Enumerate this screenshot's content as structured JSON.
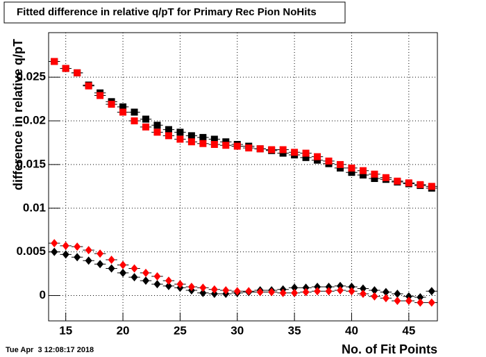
{
  "chart_data": {
    "type": "scatter",
    "title": "Fitted difference in relative q/pT for Primary Rec Pion NoHits",
    "x_label": "No. of Fit Points",
    "y_label": "difference in relative q/pT",
    "timestamp": "Tue Apr  3 12:08:17 2018",
    "x": [
      14,
      15,
      16,
      17,
      18,
      19,
      20,
      21,
      22,
      23,
      24,
      25,
      26,
      27,
      28,
      29,
      30,
      31,
      32,
      33,
      34,
      35,
      36,
      37,
      38,
      39,
      40,
      41,
      42,
      43,
      44,
      45,
      46,
      47
    ],
    "series": [
      {
        "color": "#000000",
        "marker": "square",
        "values": [
          0.0268,
          0.026,
          0.0255,
          0.0241,
          0.0232,
          0.0222,
          0.0216,
          0.021,
          0.0202,
          0.0195,
          0.019,
          0.0187,
          0.0183,
          0.0181,
          0.0179,
          0.0176,
          0.0173,
          0.0171,
          0.0168,
          0.0166,
          0.0163,
          0.0161,
          0.0158,
          0.0155,
          0.0151,
          0.0146,
          0.0141,
          0.0138,
          0.0134,
          0.0133,
          0.013,
          0.0128,
          0.0126,
          0.0123
        ]
      },
      {
        "color": "#ff0000",
        "marker": "square",
        "values": [
          0.0268,
          0.026,
          0.0255,
          0.024,
          0.0229,
          0.0219,
          0.021,
          0.02,
          0.0193,
          0.0187,
          0.0183,
          0.0179,
          0.0176,
          0.0174,
          0.0173,
          0.0172,
          0.0171,
          0.0169,
          0.0168,
          0.0167,
          0.0167,
          0.0164,
          0.0163,
          0.0159,
          0.0154,
          0.015,
          0.0146,
          0.0143,
          0.0139,
          0.0135,
          0.0131,
          0.0129,
          0.0127,
          0.0125
        ]
      },
      {
        "color": "#000000",
        "marker": "diamond",
        "values": [
          0.005,
          0.0047,
          0.0044,
          0.004,
          0.0036,
          0.0031,
          0.0026,
          0.0021,
          0.0017,
          0.0013,
          0.0011,
          0.0009,
          0.0006,
          0.0003,
          0.0002,
          0.0002,
          0.0003,
          0.0004,
          0.0006,
          0.0006,
          0.0007,
          0.0009,
          0.0009,
          0.001,
          0.001,
          0.0011,
          0.001,
          0.0008,
          0.0006,
          0.0004,
          0.0002,
          -0.0001,
          -0.0002,
          0.0005
        ]
      },
      {
        "color": "#ff0000",
        "marker": "diamond",
        "values": [
          0.006,
          0.0057,
          0.0056,
          0.0052,
          0.0048,
          0.0041,
          0.0035,
          0.0031,
          0.0026,
          0.0022,
          0.0017,
          0.0013,
          0.001,
          0.0009,
          0.0007,
          0.0006,
          0.0005,
          0.0005,
          0.0004,
          0.0004,
          0.0003,
          0.0003,
          0.0004,
          0.0005,
          0.0005,
          0.0006,
          0.0005,
          0.0002,
          -0.0001,
          -0.0003,
          -0.0006,
          -0.0006,
          -0.0008,
          -0.0008
        ]
      }
    ],
    "xlim": [
      13.5,
      47.5
    ],
    "ylim": [
      -0.0029,
      0.0301
    ],
    "xticks": [
      15,
      20,
      25,
      30,
      35,
      40,
      45
    ],
    "yticks": [
      0,
      0.005,
      0.01,
      0.015,
      0.02,
      0.025
    ],
    "grid": true
  }
}
